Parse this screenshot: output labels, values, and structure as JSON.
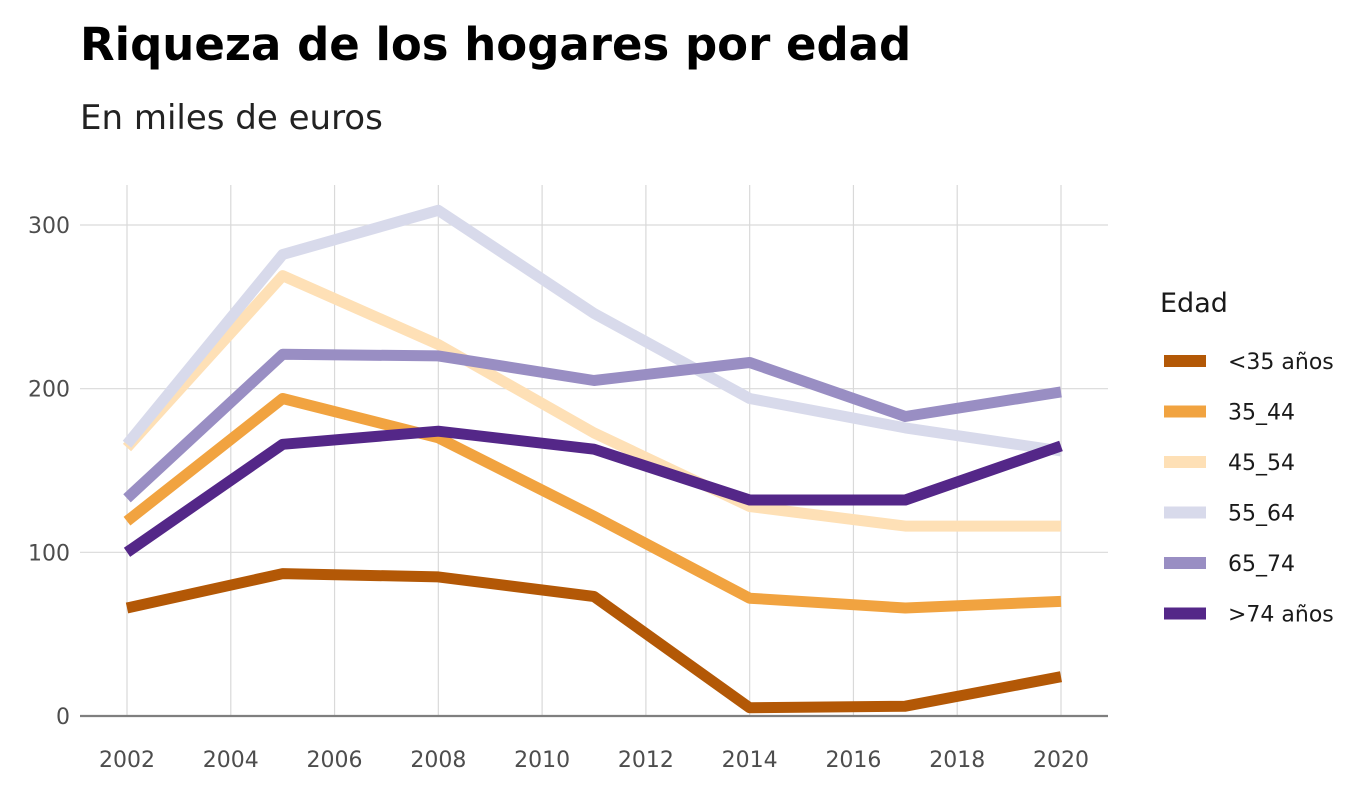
{
  "chart_data": {
    "type": "line",
    "title": "Riqueza de los hogares por edad",
    "subtitle": "En miles de euros",
    "xlabel": "",
    "ylabel": "",
    "x": [
      2002,
      2005,
      2008,
      2011,
      2014,
      2017,
      2020
    ],
    "x_ticks": [
      2002,
      2004,
      2006,
      2008,
      2010,
      2012,
      2014,
      2016,
      2018,
      2020
    ],
    "y_ticks": [
      0,
      100,
      200,
      300
    ],
    "xlim": [
      2002,
      2020
    ],
    "ylim": [
      0,
      300
    ],
    "grid": true,
    "legend": {
      "title": "Edad",
      "placement": "right"
    },
    "series": [
      {
        "name": "<35 años",
        "color": "#b35806",
        "values": [
          66,
          87,
          85,
          73,
          5,
          6,
          24
        ]
      },
      {
        "name": "35_44",
        "color": "#f1a340",
        "values": [
          119,
          194,
          170,
          122,
          72,
          66,
          70
        ]
      },
      {
        "name": "45_54",
        "color": "#fee0b6",
        "values": [
          164,
          269,
          227,
          173,
          128,
          116,
          116
        ]
      },
      {
        "name": "55_64",
        "color": "#d8daeb",
        "values": [
          166,
          282,
          309,
          246,
          194,
          176,
          162
        ]
      },
      {
        "name": "65_74",
        "color": "#998ec3",
        "values": [
          133,
          221,
          220,
          205,
          216,
          183,
          198
        ]
      },
      {
        "name": ">74 años",
        "color": "#542788",
        "values": [
          100,
          166,
          174,
          163,
          132,
          132,
          165
        ]
      }
    ]
  }
}
